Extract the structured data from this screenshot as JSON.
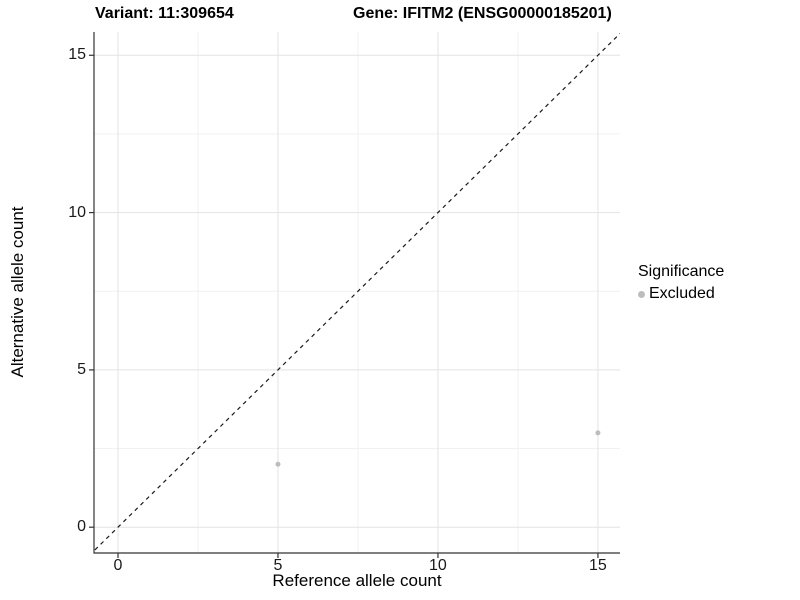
{
  "chart_data": {
    "type": "scatter",
    "title_left": "Variant: 11:309654",
    "title_right": "Gene: IFITM2 (ENSG00000185201)",
    "xlabel": "Reference allele count",
    "ylabel": "Alternative allele count",
    "xlim": [
      -0.75,
      15.69
    ],
    "ylim": [
      -0.82,
      15.74
    ],
    "x_ticks": [
      0,
      5,
      10,
      15
    ],
    "y_ticks": [
      0,
      5,
      10,
      15
    ],
    "x_minor_ticks": [
      2.5,
      7.5,
      12.5
    ],
    "y_minor_ticks": [
      2.5,
      7.5,
      12.5
    ],
    "grid": true,
    "identity_line": {
      "style": "dashed",
      "from": [
        -0.9,
        -0.9
      ],
      "to": [
        15.9,
        15.9
      ]
    },
    "series": [
      {
        "name": "Excluded",
        "color": "#bdbdbd",
        "points": [
          [
            5,
            2
          ],
          [
            15,
            3
          ]
        ]
      }
    ],
    "legend": {
      "title": "Significance",
      "position": "right",
      "entries": [
        {
          "label": "Excluded",
          "color": "#bdbdbd"
        }
      ]
    },
    "colors": {
      "background": "#ffffff",
      "grid_major": "#e3e3e3",
      "grid_minor": "#f1f1f1",
      "axis_line": "#333333",
      "tick_mark": "#333333",
      "identity_line": "#1a1a1a",
      "point": "#bdbdbd",
      "text": "#000000"
    }
  }
}
